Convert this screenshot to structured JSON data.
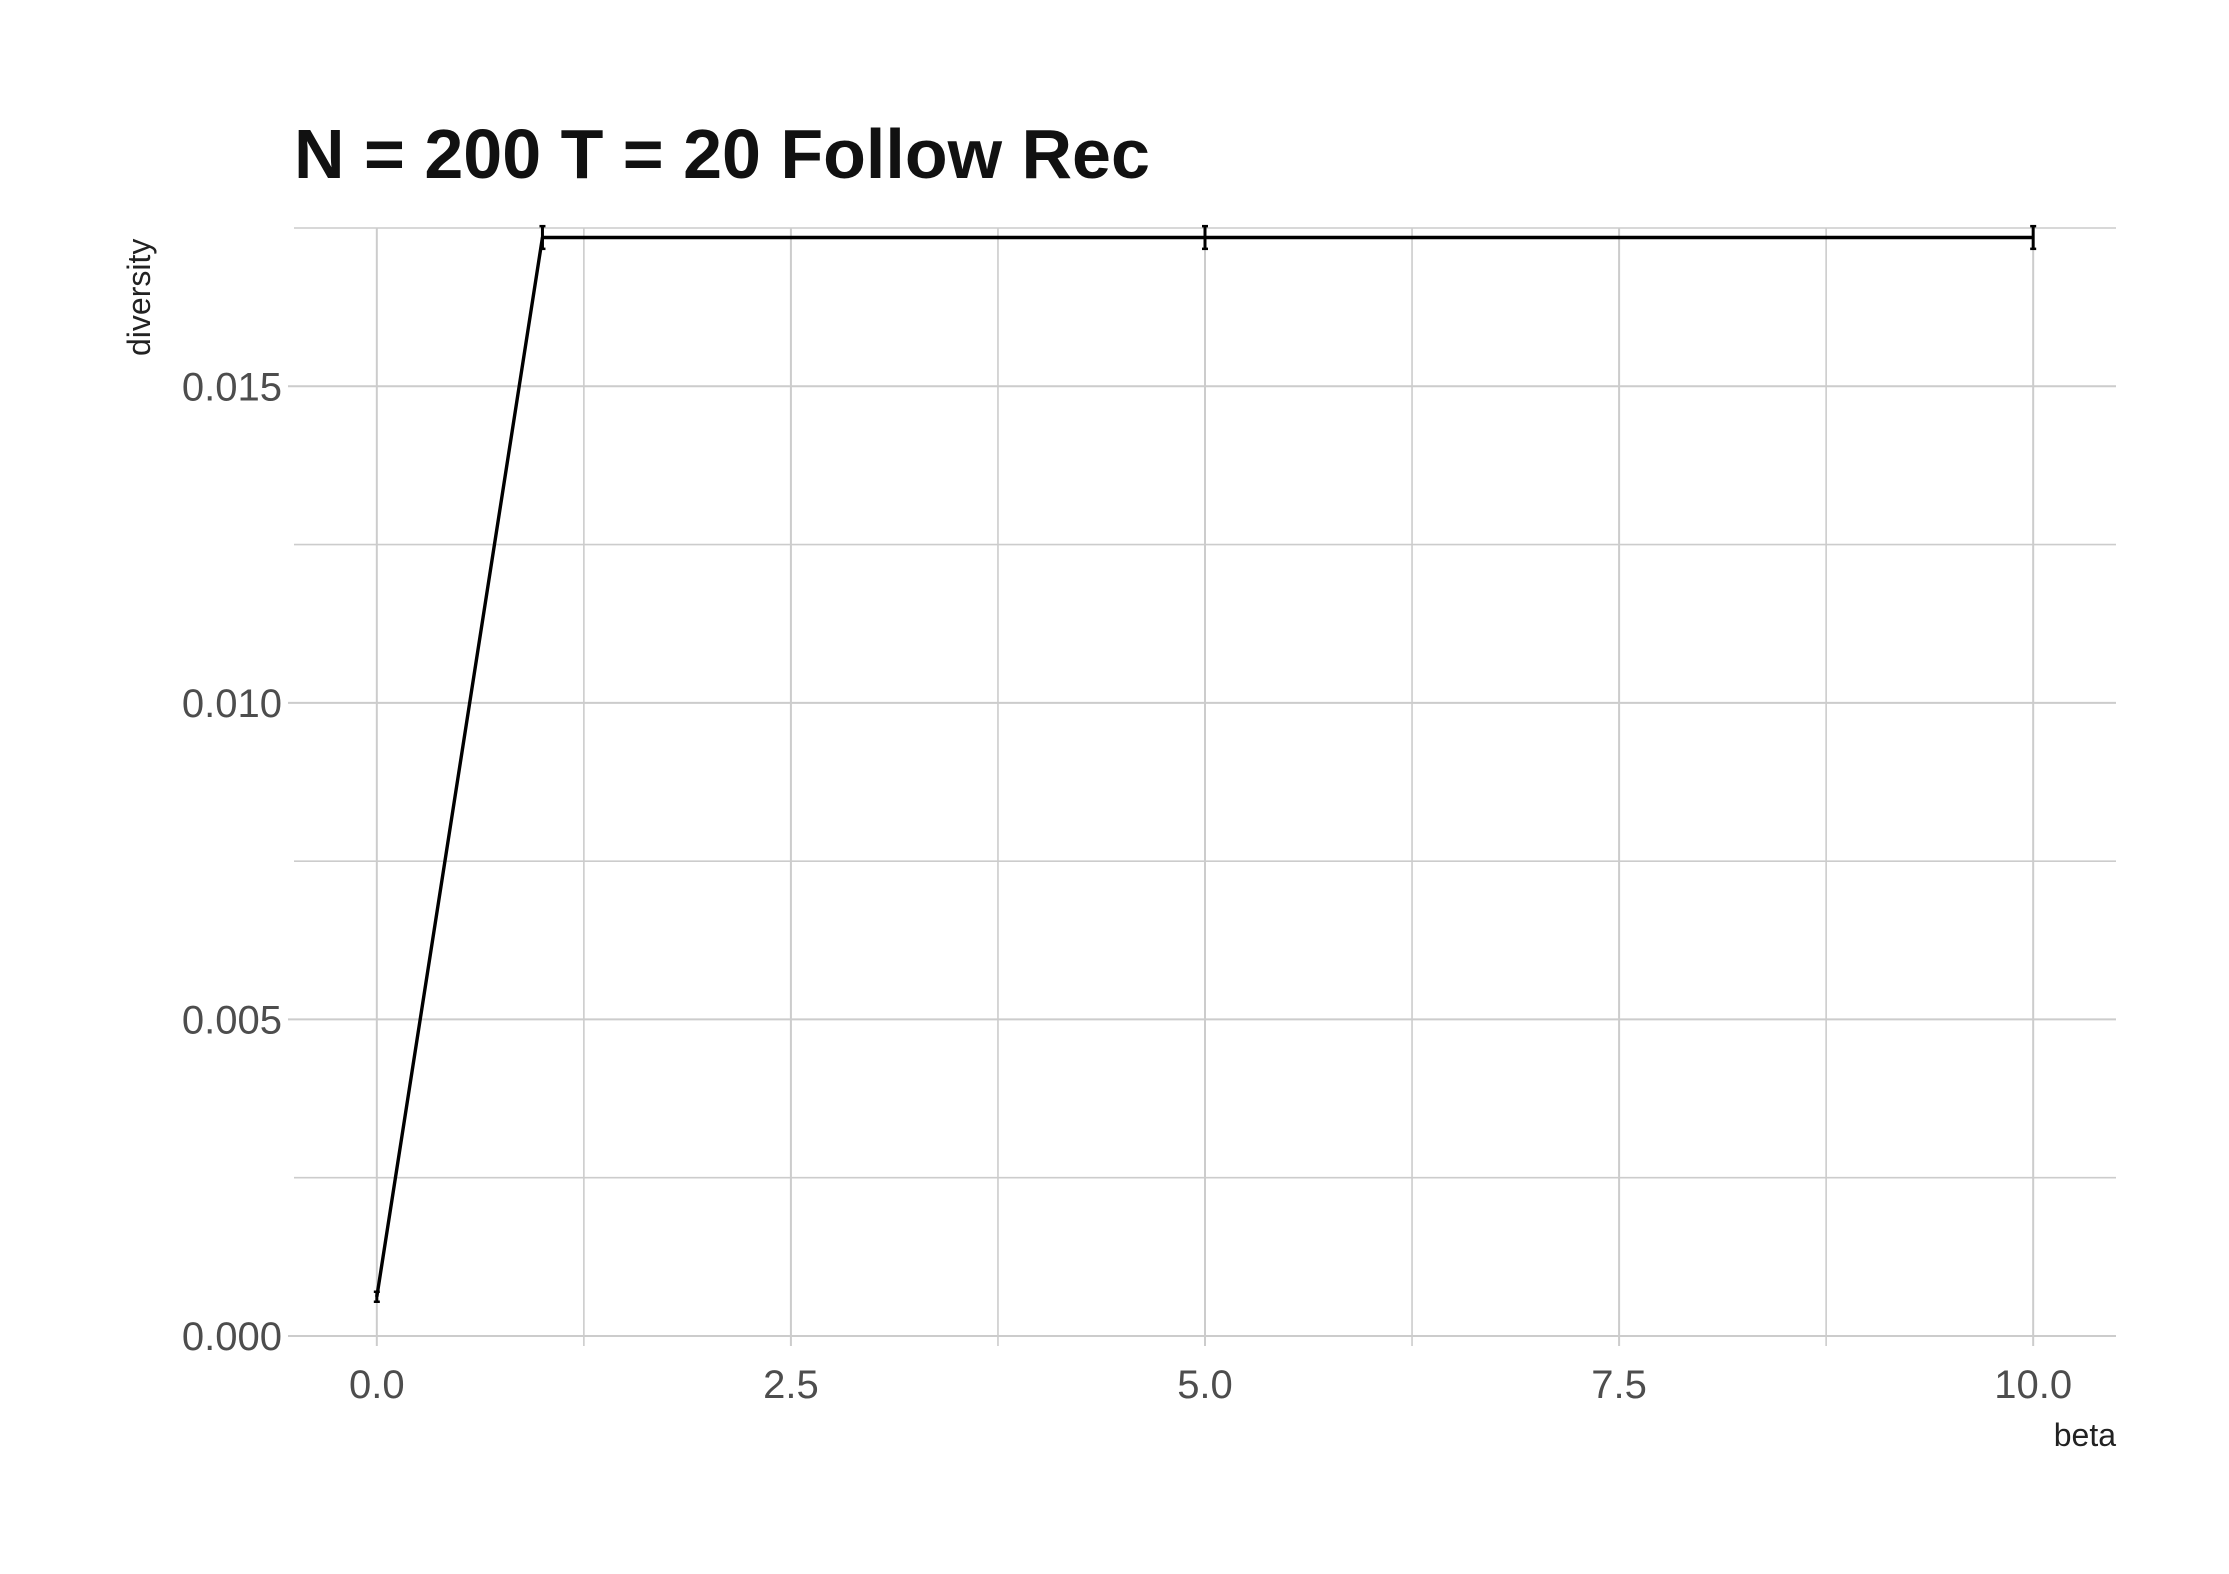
{
  "chart_data": {
    "type": "line",
    "title": "N = 200 T = 20 Follow Rec",
    "xlabel": "beta",
    "ylabel": "diversity",
    "x": [
      0,
      1,
      5,
      10
    ],
    "series": [
      {
        "values": [
          0.00062,
          0.01735,
          0.01735,
          0.01735
        ],
        "color": "#000000"
      }
    ],
    "error_bars": [
      0,
      0.0001,
      0.0001,
      0.0001
    ],
    "xlim": [
      -0.5,
      10.5
    ],
    "ylim": [
      0,
      0.0175
    ],
    "x_ticks": [
      0,
      2.5,
      5,
      7.5,
      10
    ],
    "x_tick_labels": [
      "0.0",
      "2.5",
      "5.0",
      "7.5",
      "10.0"
    ],
    "x_minor_ticks": [
      1.25,
      3.75,
      6.25,
      8.75
    ],
    "y_ticks": [
      0,
      0.005,
      0.01,
      0.015
    ],
    "y_tick_labels": [
      "0.000",
      "0.005",
      "0.010",
      "0.015"
    ],
    "y_minor_ticks": [
      0.0025,
      0.0075,
      0.0125,
      0.0175
    ],
    "grid": true,
    "grid_color": "#cccccc",
    "legend": "none"
  }
}
